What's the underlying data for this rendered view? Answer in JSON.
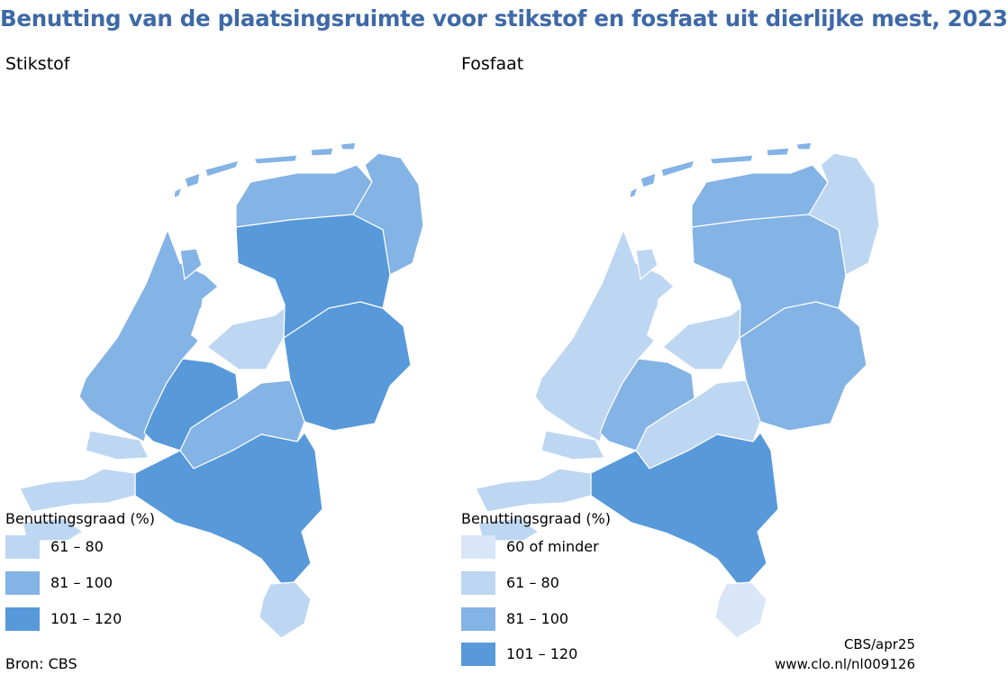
{
  "title": "Benutting van de plaatsingsruimte voor stikstof en fosfaat uit dierlijke mest, 2023",
  "colors": {
    "water": "#ffffff",
    "c60": "#d8e6f7",
    "c61_80": "#bdd6f2",
    "c81_100": "#84b3e5",
    "c101_120": "#5799d9",
    "title": "#3e69a7"
  },
  "panels": [
    {
      "label": "Stikstof",
      "legend_title": "Benuttingsgraad (%)",
      "legend": [
        {
          "label": "61 – 80",
          "color": "#bdd6f2"
        },
        {
          "label": "81 – 100",
          "color": "#84b3e5"
        },
        {
          "label": "101 – 120",
          "color": "#5799d9"
        }
      ],
      "regions": {
        "islands": "c81_100",
        "north": "c81_100",
        "northeast": "c81_100",
        "ijssel": "c101_120",
        "east": "c101_120",
        "flevoland": "c61_80",
        "west": "c81_100",
        "westcenter": "c101_120",
        "center": "c81_100",
        "south": "c101_120",
        "southwest": "c61_80",
        "limburg_south": "c61_80"
      }
    },
    {
      "label": "Fosfaat",
      "legend_title": "Benuttingsgraad (%)",
      "legend": [
        {
          "label": "60 of minder",
          "color": "#d8e6f7"
        },
        {
          "label": "61 – 80",
          "color": "#bdd6f2"
        },
        {
          "label": "81 – 100",
          "color": "#84b3e5"
        },
        {
          "label": "101 – 120",
          "color": "#5799d9"
        }
      ],
      "regions": {
        "islands": "c81_100",
        "north": "c81_100",
        "northeast": "c61_80",
        "ijssel": "c81_100",
        "east": "c81_100",
        "flevoland": "c61_80",
        "west": "c61_80",
        "westcenter": "c81_100",
        "center": "c61_80",
        "south": "c101_120",
        "southwest": "c61_80",
        "limburg_south": "c60"
      }
    }
  ],
  "source": "Bron: CBS",
  "credit_line1": "CBS/apr25",
  "credit_line2": "www.clo.nl/nl009126"
}
